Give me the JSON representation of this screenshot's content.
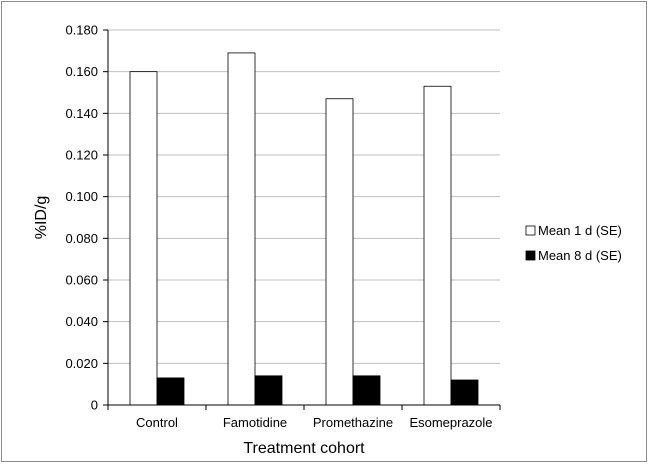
{
  "chart_data": {
    "type": "bar",
    "title": "",
    "xlabel": "Treatment cohort",
    "ylabel": "%ID/g",
    "categories": [
      "Control",
      "Famotidine",
      "Promethazine",
      "Esomeprazole"
    ],
    "series": [
      {
        "name": "Mean 1 d (SE)",
        "values": [
          0.16,
          0.169,
          0.147,
          0.153
        ],
        "color": "#ffffff"
      },
      {
        "name": "Mean 8 d (SE)",
        "values": [
          0.013,
          0.014,
          0.014,
          0.012
        ],
        "color": "#000000"
      }
    ],
    "ylim": [
      0,
      0.18
    ],
    "yticks": [
      "0",
      "0.020",
      "0.040",
      "0.060",
      "0.080",
      "0.100",
      "0.120",
      "0.140",
      "0.160",
      "0.180"
    ],
    "ytick_values": [
      0,
      0.02,
      0.04,
      0.06,
      0.08,
      0.1,
      0.12,
      0.14,
      0.16,
      0.18
    ],
    "grid": true,
    "legend_position": "right"
  }
}
